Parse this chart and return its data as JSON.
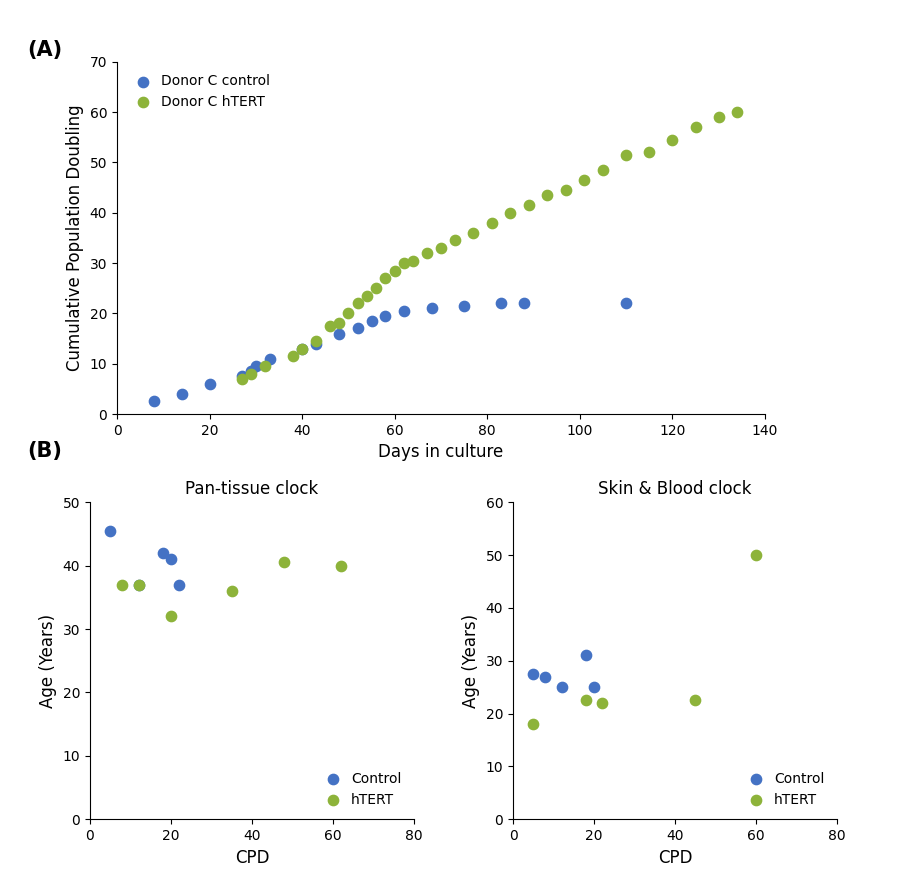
{
  "panel_A": {
    "control_x": [
      8,
      14,
      20,
      27,
      29,
      30,
      33,
      40,
      43,
      48,
      52,
      55,
      58,
      62,
      68,
      75,
      83,
      88,
      110
    ],
    "control_y": [
      2.5,
      4.0,
      6.0,
      7.5,
      8.5,
      9.5,
      11.0,
      13.0,
      14.0,
      16.0,
      17.0,
      18.5,
      19.5,
      20.5,
      21.0,
      21.5,
      22.0,
      22.0,
      22.0
    ],
    "htert_x": [
      27,
      29,
      32,
      38,
      40,
      43,
      46,
      48,
      50,
      52,
      54,
      56,
      58,
      60,
      62,
      64,
      67,
      70,
      73,
      77,
      81,
      85,
      89,
      93,
      97,
      101,
      105,
      110,
      115,
      120,
      125,
      130,
      134
    ],
    "htert_y": [
      7.0,
      8.0,
      9.5,
      11.5,
      13.0,
      14.5,
      17.5,
      18.0,
      20.0,
      22.0,
      23.5,
      25.0,
      27.0,
      28.5,
      30.0,
      30.5,
      32.0,
      33.0,
      34.5,
      36.0,
      38.0,
      40.0,
      41.5,
      43.5,
      44.5,
      46.5,
      48.5,
      51.5,
      52.0,
      54.5,
      57.0,
      59.0,
      60.0
    ],
    "control_color": "#4472C4",
    "htert_color": "#8DB33A",
    "xlabel": "Days in culture",
    "ylabel": "Cumulative Population Doubling",
    "xlim": [
      0,
      140
    ],
    "ylim": [
      0,
      70
    ],
    "xticks": [
      0,
      20,
      40,
      60,
      80,
      100,
      120,
      140
    ],
    "yticks": [
      0,
      10,
      20,
      30,
      40,
      50,
      60,
      70
    ],
    "legend_control": "Donor C control",
    "legend_htert": "Donor C hTERT"
  },
  "panel_B_left": {
    "control_x": [
      5,
      12,
      18,
      20,
      22
    ],
    "control_y": [
      45.5,
      37.0,
      42.0,
      41.0,
      37.0
    ],
    "htert_x": [
      8,
      12,
      20,
      35,
      48,
      62
    ],
    "htert_y": [
      37.0,
      37.0,
      32.0,
      36.0,
      40.5,
      40.0
    ],
    "control_color": "#4472C4",
    "htert_color": "#8DB33A",
    "title": "Pan-tissue clock",
    "xlabel": "CPD",
    "ylabel": "Age (Years)",
    "xlim": [
      0,
      80
    ],
    "ylim": [
      0,
      50
    ],
    "xticks": [
      0,
      20,
      40,
      60,
      80
    ],
    "yticks": [
      0,
      10,
      20,
      30,
      40,
      50
    ]
  },
  "panel_B_right": {
    "control_x": [
      5,
      8,
      12,
      18,
      20
    ],
    "control_y": [
      27.5,
      27.0,
      25.0,
      31.0,
      25.0
    ],
    "htert_x": [
      5,
      18,
      22,
      45,
      60
    ],
    "htert_y": [
      18.0,
      22.5,
      22.0,
      22.5,
      50.0
    ],
    "control_color": "#4472C4",
    "htert_color": "#8DB33A",
    "title": "Skin & Blood clock",
    "xlabel": "CPD",
    "ylabel": "Age (Years)",
    "xlim": [
      0,
      80
    ],
    "ylim": [
      0,
      60
    ],
    "xticks": [
      0,
      20,
      40,
      60,
      80
    ],
    "yticks": [
      0,
      10,
      20,
      30,
      40,
      50,
      60
    ]
  },
  "panel_label_color": "#000000",
  "panel_label_fontsize": 15,
  "marker_size": 55,
  "font_size_axis_label": 12,
  "font_size_tick": 10,
  "font_size_title": 12,
  "font_size_legend": 10,
  "background_color": "#ffffff"
}
